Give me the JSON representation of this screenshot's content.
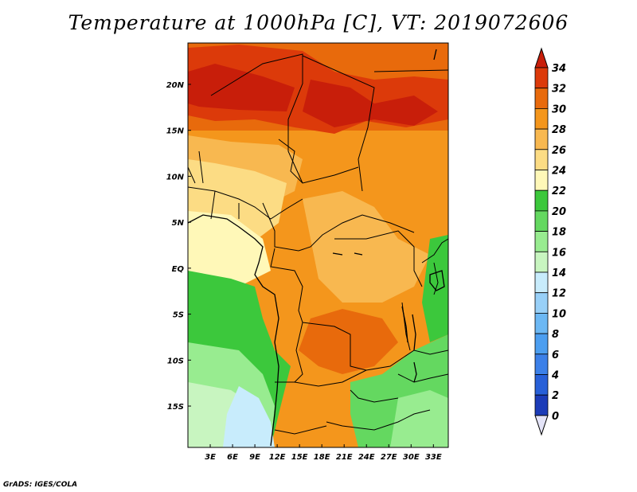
{
  "title": "Temperature at 1000hPa [C], VT: 2019072606",
  "credit": "GrADS: IGES/COLA",
  "map": {
    "lon_range": [
      0,
      35
    ],
    "lat_range": [
      -19.5,
      24.5
    ],
    "lon_ticks": [
      "3E",
      "6E",
      "9E",
      "12E",
      "15E",
      "18E",
      "21E",
      "24E",
      "27E",
      "30E",
      "33E"
    ],
    "lon_values": [
      3,
      6,
      9,
      12,
      15,
      18,
      21,
      24,
      27,
      30,
      33
    ],
    "lat_ticks": [
      "20N",
      "15N",
      "10N",
      "5N",
      "EQ",
      "5S",
      "10S",
      "15S"
    ],
    "lat_values": [
      20,
      15,
      10,
      5,
      0,
      -5,
      -10,
      -15
    ]
  },
  "colorbar": {
    "labels": [
      "0",
      "2",
      "4",
      "6",
      "8",
      "10",
      "12",
      "14",
      "16",
      "18",
      "20",
      "22",
      "24",
      "26",
      "28",
      "30",
      "32",
      "34"
    ],
    "colors": [
      "#0c0c70",
      "#1c3cb8",
      "#2860d8",
      "#3c80e8",
      "#4c9ef0",
      "#6cb8f4",
      "#98d0f8",
      "#c8ecfc",
      "#c8f5c0",
      "#98ec90",
      "#64d860",
      "#3cc83c",
      "#fff8b8",
      "#fcdc84",
      "#f8b850",
      "#f4961c",
      "#e86a0c",
      "#dc3a0a",
      "#c81e0a"
    ]
  }
}
